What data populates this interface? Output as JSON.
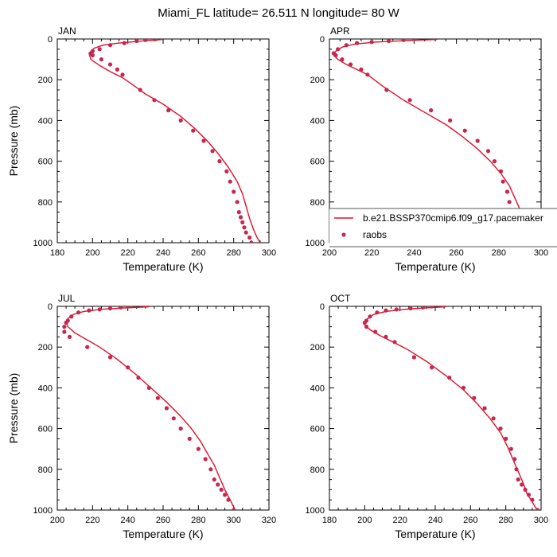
{
  "figure": {
    "title": "Miami_FL  latitude= 26.511 N longitude= 80 W"
  },
  "legend": {
    "model_label": "b.e21.BSSP370cmip6.f09_g17.pacemaker",
    "obs_label": "raobs",
    "model_color": "#e0102a",
    "obs_color": "#c4284f",
    "placement": "lower-right of APR panel"
  },
  "chart_data": [
    {
      "type": "line",
      "panel": "JAN",
      "xlabel": "Temperature (K)",
      "ylabel": "Pressure (mb)",
      "xlim": [
        180,
        300
      ],
      "ylim": [
        1000,
        0
      ],
      "xticks": [
        180,
        200,
        220,
        240,
        260,
        280,
        300
      ],
      "yticks": [
        0,
        200,
        400,
        600,
        800,
        1000
      ],
      "grid": false,
      "series": [
        {
          "kind": "model-line",
          "x": [
            240,
            228,
            215,
            206,
            201,
            198,
            199,
            204,
            210,
            217,
            222,
            230,
            240,
            250,
            258,
            265,
            271,
            277,
            282,
            285,
            287,
            289,
            291,
            293,
            295
          ],
          "y": [
            2,
            10,
            20,
            30,
            45,
            70,
            100,
            130,
            160,
            190,
            220,
            270,
            320,
            380,
            440,
            500,
            560,
            630,
            700,
            760,
            820,
            880,
            930,
            970,
            1000
          ]
        },
        {
          "kind": "raobs",
          "x": [
            236,
            230,
            225,
            218,
            210,
            204,
            200,
            199,
            200,
            205,
            210,
            214,
            217,
            227,
            235,
            243,
            250,
            257,
            263,
            268,
            272,
            276,
            278,
            280,
            282,
            283,
            284,
            285,
            286,
            287,
            289,
            290
          ],
          "y": [
            0,
            5,
            10,
            20,
            30,
            50,
            60,
            70,
            80,
            100,
            125,
            150,
            175,
            250,
            300,
            350,
            400,
            450,
            500,
            550,
            600,
            650,
            700,
            750,
            800,
            850,
            875,
            900,
            925,
            950,
            975,
            1000
          ]
        }
      ]
    },
    {
      "type": "line",
      "panel": "APR",
      "xlabel": "Temperature (K)",
      "ylabel": "",
      "xlim": [
        200,
        300
      ],
      "ylim": [
        1000,
        0
      ],
      "xticks": [
        200,
        220,
        240,
        260,
        280,
        300
      ],
      "yticks": [
        0,
        200,
        400,
        600,
        800,
        1000
      ],
      "grid": false,
      "series": [
        {
          "kind": "model-line",
          "x": [
            251,
            236,
            222,
            212,
            206,
            203,
            202,
            204,
            208,
            213,
            218,
            225,
            235,
            245,
            255,
            263,
            270,
            276,
            281,
            285,
            288,
            291,
            294,
            296,
            297
          ],
          "y": [
            2,
            8,
            15,
            25,
            40,
            60,
            80,
            100,
            125,
            150,
            175,
            230,
            300,
            360,
            420,
            480,
            540,
            600,
            660,
            720,
            790,
            860,
            920,
            970,
            1000
          ]
        },
        {
          "kind": "raobs",
          "x": [
            240,
            235,
            228,
            220,
            213,
            208,
            204,
            202,
            203,
            206,
            210,
            215,
            218,
            227,
            238,
            248,
            257,
            264,
            270,
            275,
            278,
            281,
            282,
            284,
            285,
            287,
            289,
            291,
            293,
            295,
            296
          ],
          "y": [
            0,
            5,
            10,
            15,
            20,
            30,
            50,
            70,
            80,
            100,
            125,
            150,
            175,
            250,
            300,
            350,
            400,
            450,
            500,
            550,
            600,
            650,
            700,
            750,
            800,
            850,
            875,
            900,
            925,
            950,
            1000
          ]
        }
      ]
    },
    {
      "type": "line",
      "panel": "JUL",
      "xlabel": "Temperature (K)",
      "ylabel": "Pressure (mb)",
      "xlim": [
        200,
        320
      ],
      "ylim": [
        1000,
        0
      ],
      "xticks": [
        200,
        220,
        240,
        260,
        280,
        300,
        320
      ],
      "yticks": [
        0,
        200,
        400,
        600,
        800,
        1000
      ],
      "grid": false,
      "series": [
        {
          "kind": "model-line",
          "x": [
            252,
            238,
            224,
            215,
            209,
            206,
            205,
            206,
            210,
            216,
            224,
            234,
            244,
            253,
            262,
            270,
            276,
            281,
            285,
            289,
            292,
            295,
            298,
            300,
            301
          ],
          "y": [
            2,
            8,
            15,
            25,
            40,
            60,
            80,
            100,
            130,
            160,
            200,
            260,
            330,
            400,
            470,
            540,
            600,
            660,
            720,
            780,
            840,
            900,
            950,
            985,
            1000
          ]
        },
        {
          "kind": "raobs",
          "x": [
            240,
            236,
            230,
            224,
            218,
            212,
            208,
            206,
            205,
            204,
            204,
            207,
            217,
            230,
            240,
            246,
            252,
            257,
            262,
            266,
            270,
            275,
            280,
            284,
            287,
            289,
            291,
            293,
            295,
            297,
            300
          ],
          "y": [
            0,
            5,
            10,
            15,
            20,
            30,
            50,
            70,
            80,
            100,
            125,
            150,
            200,
            250,
            300,
            350,
            400,
            450,
            500,
            550,
            600,
            650,
            700,
            750,
            800,
            850,
            875,
            900,
            925,
            950,
            1000
          ]
        }
      ]
    },
    {
      "type": "line",
      "panel": "OCT",
      "xlabel": "Temperature (K)",
      "ylabel": "",
      "xlim": [
        180,
        300
      ],
      "ylim": [
        1000,
        0
      ],
      "xticks": [
        180,
        200,
        220,
        240,
        260,
        280,
        300
      ],
      "yticks": [
        0,
        200,
        400,
        600,
        800,
        1000
      ],
      "grid": false,
      "series": [
        {
          "kind": "model-line",
          "x": [
            246,
            234,
            222,
            212,
            205,
            201,
            200,
            203,
            209,
            216,
            224,
            235,
            246,
            256,
            264,
            271,
            277,
            281,
            284,
            287,
            290,
            292,
            295,
            297,
            299
          ],
          "y": [
            2,
            8,
            15,
            25,
            40,
            65,
            90,
            115,
            145,
            175,
            210,
            270,
            340,
            410,
            480,
            550,
            620,
            690,
            750,
            810,
            870,
            920,
            960,
            990,
            1000
          ]
        },
        {
          "kind": "raobs",
          "x": [
            238,
            233,
            226,
            218,
            212,
            207,
            203,
            201,
            200,
            201,
            206,
            212,
            217,
            228,
            238,
            248,
            256,
            262,
            268,
            273,
            277,
            280,
            283,
            285,
            286,
            287,
            289,
            291,
            293,
            295,
            298
          ],
          "y": [
            0,
            5,
            10,
            15,
            20,
            30,
            50,
            70,
            80,
            100,
            125,
            150,
            175,
            250,
            300,
            350,
            400,
            450,
            500,
            550,
            600,
            650,
            700,
            750,
            800,
            850,
            875,
            900,
            925,
            950,
            1000
          ]
        }
      ]
    }
  ]
}
